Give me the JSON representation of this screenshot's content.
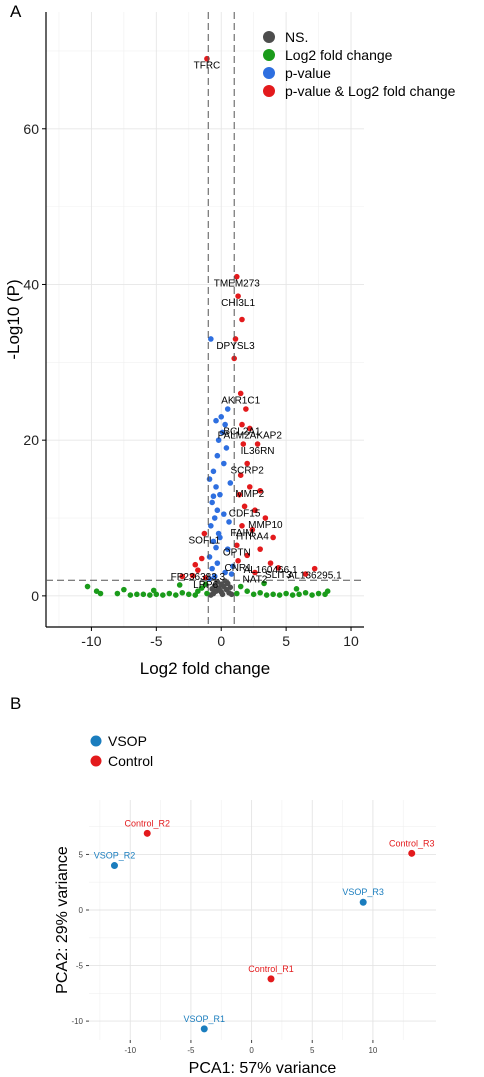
{
  "chart_data": [
    {
      "type": "scatter",
      "panel_label": "A",
      "xlabel": "Log2 fold change",
      "ylabel": "-Log10 (P)",
      "xlim": [
        -13.5,
        11
      ],
      "ylim": [
        -4,
        75
      ],
      "xticks": [
        -10,
        -5,
        0,
        5,
        10
      ],
      "yticks": [
        0,
        20,
        40,
        60
      ],
      "grid": true,
      "cutoffs": {
        "x": [
          -1,
          1
        ],
        "y": 2
      },
      "legend_position": "top-right",
      "series": [
        {
          "name": "NS.",
          "color": "#4d4d4d",
          "points": [
            [
              -0.8,
              0.1
            ],
            [
              -0.6,
              0.3
            ],
            [
              -0.4,
              0.6
            ],
            [
              -0.2,
              1.0
            ],
            [
              0.0,
              1.5
            ],
            [
              0.2,
              1.2
            ],
            [
              0.4,
              0.8
            ],
            [
              0.6,
              0.4
            ],
            [
              0.8,
              0.2
            ],
            [
              -0.5,
              1.3
            ],
            [
              0.5,
              1.6
            ],
            [
              -0.3,
              1.8
            ],
            [
              0.3,
              1.9
            ],
            [
              0.0,
              0.5
            ],
            [
              -0.7,
              0.9
            ],
            [
              0.7,
              1.1
            ],
            [
              0.1,
              0.2
            ],
            [
              -0.1,
              0.7
            ]
          ]
        },
        {
          "name": "Log2 fold change",
          "color": "#1a9b1a",
          "points": [
            [
              -10.3,
              1.2
            ],
            [
              -9.6,
              0.6
            ],
            [
              -9.3,
              0.3
            ],
            [
              -8.0,
              0.3
            ],
            [
              -7.5,
              0.8
            ],
            [
              -7.0,
              0.1
            ],
            [
              -6.5,
              0.2
            ],
            [
              -6.0,
              0.2
            ],
            [
              -5.5,
              0.1
            ],
            [
              -5.0,
              0.2
            ],
            [
              -4.5,
              0.1
            ],
            [
              -4.0,
              0.3
            ],
            [
              -3.5,
              0.1
            ],
            [
              -3.0,
              0.4
            ],
            [
              -2.5,
              0.2
            ],
            [
              -2.0,
              0.1
            ],
            [
              -1.8,
              0.6
            ],
            [
              -1.5,
              1.0
            ],
            [
              -1.2,
              1.5
            ],
            [
              -1.1,
              0.3
            ],
            [
              1.2,
              0.3
            ],
            [
              1.5,
              1.2
            ],
            [
              2.0,
              0.6
            ],
            [
              2.5,
              0.2
            ],
            [
              3.0,
              0.4
            ],
            [
              3.5,
              0.1
            ],
            [
              4.0,
              0.2
            ],
            [
              4.5,
              0.1
            ],
            [
              5.0,
              0.3
            ],
            [
              5.5,
              0.1
            ],
            [
              6.0,
              0.2
            ],
            [
              6.5,
              0.4
            ],
            [
              7.0,
              0.1
            ],
            [
              7.5,
              0.3
            ],
            [
              8.0,
              0.2
            ],
            [
              8.2,
              0.6
            ],
            [
              -3.2,
              1.4
            ],
            [
              3.3,
              1.6
            ],
            [
              -5.2,
              0.7
            ],
            [
              5.8,
              0.9
            ]
          ]
        },
        {
          "name": "p-value",
          "color": "#2e6fe0",
          "points": [
            [
              -0.5,
              2.5
            ],
            [
              -0.7,
              3.5
            ],
            [
              -0.3,
              4.2
            ],
            [
              -0.9,
              5.0
            ],
            [
              -0.4,
              6.2
            ],
            [
              -0.6,
              7.0
            ],
            [
              -0.2,
              8.0
            ],
            [
              -0.8,
              9.0
            ],
            [
              -0.5,
              10.0
            ],
            [
              -0.3,
              11.0
            ],
            [
              -0.7,
              12.0
            ],
            [
              -0.1,
              13.0
            ],
            [
              -0.4,
              14.0
            ],
            [
              -0.9,
              15.0
            ],
            [
              -0.6,
              16.0
            ],
            [
              0.2,
              17.0
            ],
            [
              -0.3,
              18.0
            ],
            [
              0.4,
              19.0
            ],
            [
              -0.2,
              20.0
            ],
            [
              0.1,
              21.0
            ],
            [
              0.3,
              22.0
            ],
            [
              0.0,
              23.0
            ],
            [
              -0.4,
              22.5
            ],
            [
              0.5,
              24.0
            ],
            [
              -0.8,
              33.0
            ],
            [
              0.7,
              14.5
            ],
            [
              0.6,
              9.5
            ],
            [
              0.5,
              6.0
            ],
            [
              0.3,
              3.0
            ],
            [
              0.8,
              2.8
            ],
            [
              -0.9,
              2.2
            ],
            [
              0.9,
              3.8
            ],
            [
              -0.6,
              12.8
            ],
            [
              0.2,
              10.5
            ],
            [
              -0.1,
              7.5
            ]
          ]
        },
        {
          "name": "p-value & Log2 fold change",
          "color": "#e31a1c",
          "points": [
            [
              -1.1,
              69.0
            ],
            [
              1.2,
              41.0
            ],
            [
              1.3,
              38.5
            ],
            [
              1.6,
              35.5
            ],
            [
              1.1,
              33.0
            ],
            [
              1.0,
              30.5
            ],
            [
              1.5,
              26.0
            ],
            [
              1.9,
              24.0
            ],
            [
              1.6,
              22.0
            ],
            [
              2.2,
              21.5
            ],
            [
              1.7,
              19.5
            ],
            [
              2.8,
              19.5
            ],
            [
              2.0,
              17.0
            ],
            [
              1.5,
              15.5
            ],
            [
              2.2,
              14.0
            ],
            [
              3.0,
              13.5
            ],
            [
              1.4,
              13.0
            ],
            [
              1.8,
              11.5
            ],
            [
              2.6,
              11.0
            ],
            [
              3.4,
              10.0
            ],
            [
              1.6,
              9.0
            ],
            [
              2.4,
              8.5
            ],
            [
              4.0,
              7.5
            ],
            [
              1.2,
              6.5
            ],
            [
              3.0,
              6.0
            ],
            [
              2.0,
              5.2
            ],
            [
              1.3,
              4.5
            ],
            [
              3.8,
              4.2
            ],
            [
              4.4,
              3.6
            ],
            [
              2.6,
              3.0
            ],
            [
              7.2,
              3.5
            ],
            [
              6.5,
              2.8
            ],
            [
              -1.3,
              8.0
            ],
            [
              -1.5,
              4.8
            ],
            [
              -2.0,
              4.0
            ],
            [
              -2.2,
              2.6
            ],
            [
              -1.8,
              3.3
            ],
            [
              -3.0,
              2.5
            ],
            [
              -1.2,
              2.3
            ]
          ]
        }
      ],
      "annotations": [
        {
          "label": "TFRC",
          "x": -1.1,
          "y": 69.0
        },
        {
          "label": "TMEM273",
          "x": 1.2,
          "y": 41.0
        },
        {
          "label": "CHI3L1",
          "x": 1.3,
          "y": 38.5
        },
        {
          "label": "DPYSL3",
          "x": 1.1,
          "y": 33.0
        },
        {
          "label": "AKR1C1",
          "x": 1.5,
          "y": 26.0
        },
        {
          "label": "BCL2A1",
          "x": 1.6,
          "y": 22.0
        },
        {
          "label": "PALM2AKAP2",
          "x": 2.2,
          "y": 21.5
        },
        {
          "label": "IL36RN",
          "x": 2.8,
          "y": 19.5
        },
        {
          "label": "SCRP2",
          "x": 2.0,
          "y": 17.0
        },
        {
          "label": "MMP2",
          "x": 2.2,
          "y": 14.0
        },
        {
          "label": "CDF15",
          "x": 1.8,
          "y": 11.5
        },
        {
          "label": "FAIM",
          "x": 1.6,
          "y": 9.0
        },
        {
          "label": "MMP10",
          "x": 3.4,
          "y": 10.0
        },
        {
          "label": "OPTN",
          "x": 1.2,
          "y": 6.5
        },
        {
          "label": "HTRA4",
          "x": 2.4,
          "y": 8.5
        },
        {
          "label": "SOFL1",
          "x": -1.3,
          "y": 8.0
        },
        {
          "label": "AL160466.1",
          "x": 3.8,
          "y": 4.2
        },
        {
          "label": "CNR1",
          "x": 1.3,
          "y": 4.5
        },
        {
          "label": "SLIT3",
          "x": 4.4,
          "y": 3.6
        },
        {
          "label": "FP236383.3",
          "x": -1.8,
          "y": 3.3
        },
        {
          "label": "NAT2",
          "x": 2.6,
          "y": 3.0
        },
        {
          "label": "LRP6",
          "x": -1.2,
          "y": 2.3
        },
        {
          "label": "AL136295.1",
          "x": 7.2,
          "y": 3.5
        }
      ]
    },
    {
      "type": "scatter",
      "panel_label": "B",
      "xlabel": "PCA1: 57% variance",
      "ylabel": "PCA2: 29% variance",
      "xlim": [
        -13.4,
        15.2
      ],
      "ylim": [
        -11.7,
        9.9
      ],
      "xticks": [
        -10,
        -5,
        0,
        5,
        10
      ],
      "yticks": [
        -10,
        -5,
        0,
        5
      ],
      "grid": true,
      "legend_position": "top-left",
      "series": [
        {
          "name": "VSOP",
          "color": "#1a7dbe",
          "points": [
            [
              -11.3,
              4.0
            ],
            [
              -3.9,
              -10.7
            ],
            [
              9.2,
              0.7
            ]
          ],
          "labels": [
            "VSOP_R2",
            "VSOP_R1",
            "VSOP_R3"
          ]
        },
        {
          "name": "Control",
          "color": "#e31a1c",
          "points": [
            [
              -8.6,
              6.9
            ],
            [
              1.6,
              -6.2
            ],
            [
              13.2,
              5.1
            ]
          ],
          "labels": [
            "Control_R2",
            "Control_R1",
            "Control_R3"
          ]
        }
      ]
    }
  ]
}
